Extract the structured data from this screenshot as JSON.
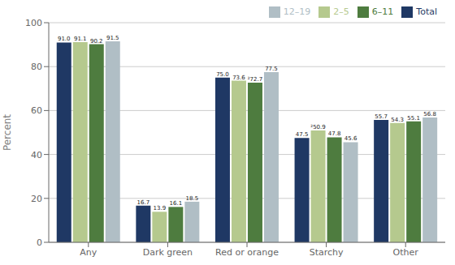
{
  "chart_data": {
    "type": "bar",
    "categories": [
      "Any",
      "Dark green",
      "Red or orange",
      "Starchy",
      "Other"
    ],
    "series": [
      {
        "name": "Total",
        "color": "#1f3864",
        "values": [
          91.0,
          16.7,
          75.0,
          47.5,
          55.7
        ],
        "value_labels": [
          "91.0",
          "16.7",
          "75.0",
          "47.5",
          "55.7"
        ]
      },
      {
        "name": "2–5",
        "color": "#b5c98e",
        "values": [
          91.1,
          13.9,
          73.6,
          50.9,
          54.3
        ],
        "value_labels": [
          "91.1",
          "13.9",
          "73.6",
          "²50.9",
          "54.3"
        ]
      },
      {
        "name": "6–11",
        "color": "#4e7c3f",
        "values": [
          90.2,
          16.1,
          72.7,
          47.8,
          55.1
        ],
        "value_labels": [
          "90.2",
          "16.1",
          "²72.7",
          "47.8",
          "55.1"
        ]
      },
      {
        "name": "12–19",
        "color": "#b0bec5",
        "values": [
          91.5,
          18.5,
          77.5,
          45.6,
          56.8
        ],
        "value_labels": [
          "91.5",
          "18.5",
          "77.5",
          "45.6",
          "56.8"
        ]
      }
    ],
    "ylabel": "Percent",
    "ylim": [
      0,
      100
    ],
    "yticks": [
      0,
      20,
      40,
      60,
      80,
      100
    ],
    "grid": true,
    "legend": "upper right",
    "data_labels": true
  }
}
